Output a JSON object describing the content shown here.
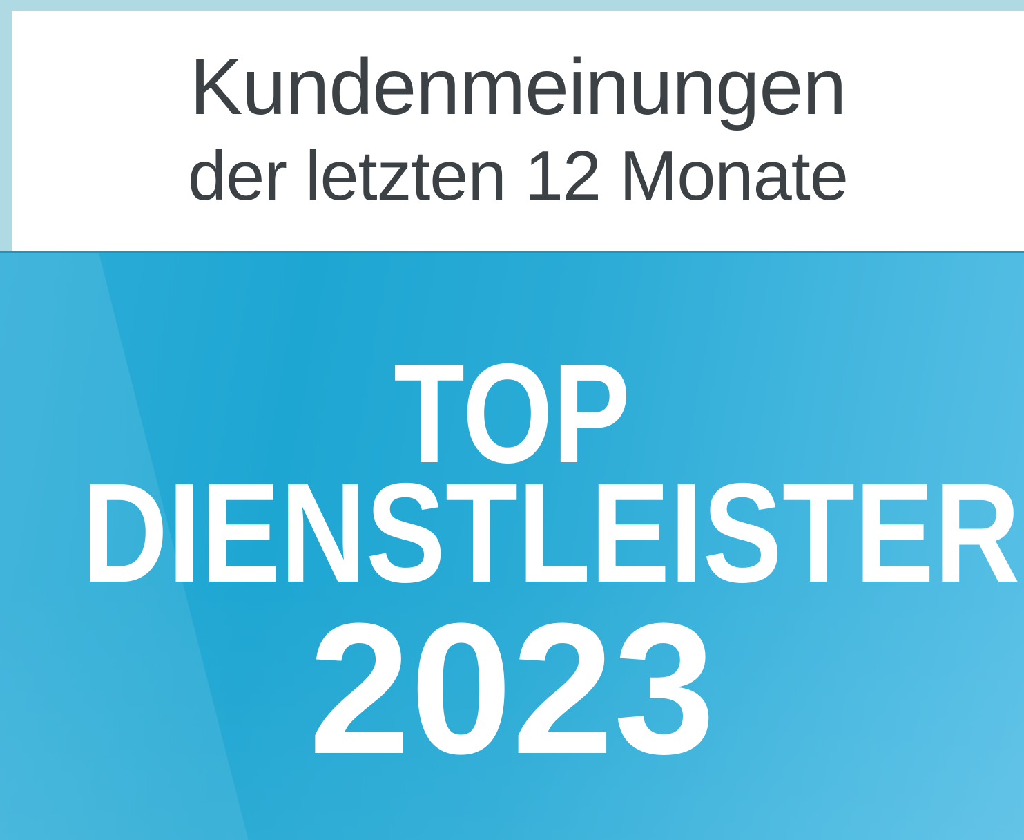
{
  "badge": {
    "header": {
      "title": "Kundenmeinungen",
      "subtitle": "der letzten 12 Monate"
    },
    "seal": {
      "word_top": "TOP",
      "word_main": "DIENSTLEISTER",
      "year": "2023"
    },
    "colors": {
      "frame": "#b0dae3",
      "panel_background": "#ffffff",
      "header_text": "#3c4145",
      "seal_text": "#ffffff",
      "seal_gradient_dark": "#1ea6d2",
      "seal_gradient_mid": "#2eadd8",
      "seal_gradient_light": "#5ac0e6",
      "divider_line": "#2f8fae"
    }
  }
}
